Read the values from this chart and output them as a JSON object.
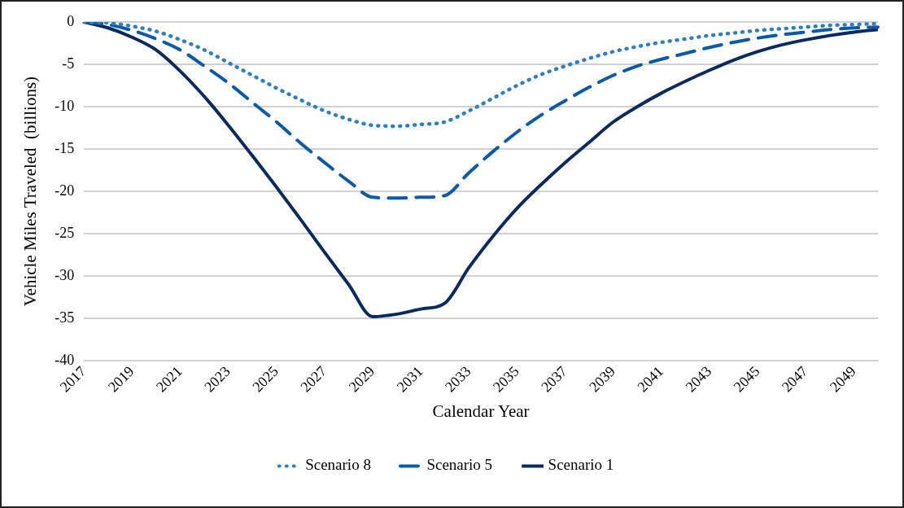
{
  "chart_data": {
    "type": "line",
    "xlabel": "Calendar Year",
    "ylabel": "Vehicle Miles Traveled  (billions)",
    "categories": [
      "2017",
      null,
      "2019",
      null,
      "2021",
      null,
      "2023",
      null,
      "2025",
      null,
      "2027",
      null,
      "2029",
      null,
      "2031",
      null,
      "2033",
      null,
      "2035",
      null,
      "2037",
      null,
      "2039",
      null,
      "2041",
      null,
      "2043",
      null,
      "2045",
      null,
      "2047",
      null,
      "2049",
      null
    ],
    "series": [
      {
        "name": "Scenario 8",
        "color": "#2e7fc0",
        "line_style": "dotted",
        "values": [
          0,
          -0.1,
          -0.5,
          -1.1,
          -2.1,
          -3.3,
          -4.8,
          -6.3,
          -7.8,
          -9.2,
          -10.5,
          -11.5,
          -12.2,
          -12.3,
          -12.1,
          -11.8,
          -10.5,
          -9,
          -7.5,
          -6.2,
          -5.2,
          -4.3,
          -3.5,
          -2.9,
          -2.4,
          -2,
          -1.6,
          -1.3,
          -1,
          -0.8,
          -0.6,
          -0.4,
          -0.3,
          -0.2
        ]
      },
      {
        "name": "Scenario 5",
        "color": "#0a5aa8",
        "line_style": "dashed",
        "values": [
          0,
          -0.3,
          -1,
          -2,
          -3.3,
          -5.2,
          -7.2,
          -9.5,
          -11.8,
          -14.3,
          -16.6,
          -18.8,
          -20.7,
          -20.8,
          -20.7,
          -20.5,
          -17.8,
          -15.3,
          -13,
          -11,
          -9.3,
          -7.7,
          -6.3,
          -5.2,
          -4.4,
          -3.7,
          -3,
          -2.4,
          -1.9,
          -1.5,
          -1.2,
          -0.9,
          -0.7,
          -0.6
        ]
      },
      {
        "name": "Scenario 1",
        "color": "#0b2a5e",
        "line_style": "solid",
        "values": [
          0,
          -0.7,
          -1.8,
          -3.3,
          -5.8,
          -8.8,
          -12.2,
          -15.8,
          -19.5,
          -23.3,
          -27.2,
          -31,
          -34.8,
          -34.5,
          -33.9,
          -33.2,
          -29,
          -25.3,
          -22,
          -19.2,
          -16.6,
          -14.2,
          -11.8,
          -10,
          -8.4,
          -7,
          -5.7,
          -4.5,
          -3.5,
          -2.7,
          -2.1,
          -1.6,
          -1.2,
          -0.9
        ]
      }
    ],
    "ylim": [
      -40,
      0
    ],
    "yticks": [
      -40,
      -35,
      -30,
      -25,
      -20,
      -15,
      -10,
      -5,
      0
    ],
    "grid": "y",
    "legend": "bottom",
    "marker": "none"
  }
}
